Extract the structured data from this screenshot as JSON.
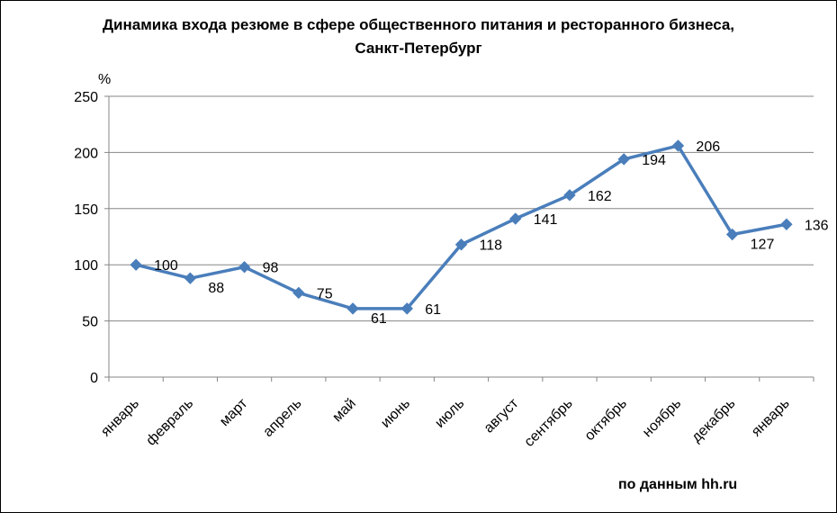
{
  "chart_data": {
    "type": "line",
    "title_line1": "Динамика входа резюме в сфере общественного питания и  ресторанного бизнеса,",
    "title_line2": "Санкт-Петербург",
    "ylabel": "%",
    "source_note": "по данным hh.ru",
    "categories": [
      "январь",
      "февраль",
      "март",
      "апрель",
      "май",
      "июнь",
      "июль",
      "август",
      "сентябрь",
      "октябрь",
      "ноябрь",
      "декабрь",
      "январь"
    ],
    "values": [
      100,
      88,
      98,
      75,
      61,
      61,
      118,
      141,
      162,
      194,
      206,
      127,
      136
    ],
    "ylim": [
      0,
      250
    ],
    "yticks": [
      0,
      50,
      100,
      150,
      200,
      250
    ],
    "grid": true,
    "legend": "none",
    "data_labels": true,
    "line_color": "#4a7ebb",
    "marker": "diamond"
  }
}
